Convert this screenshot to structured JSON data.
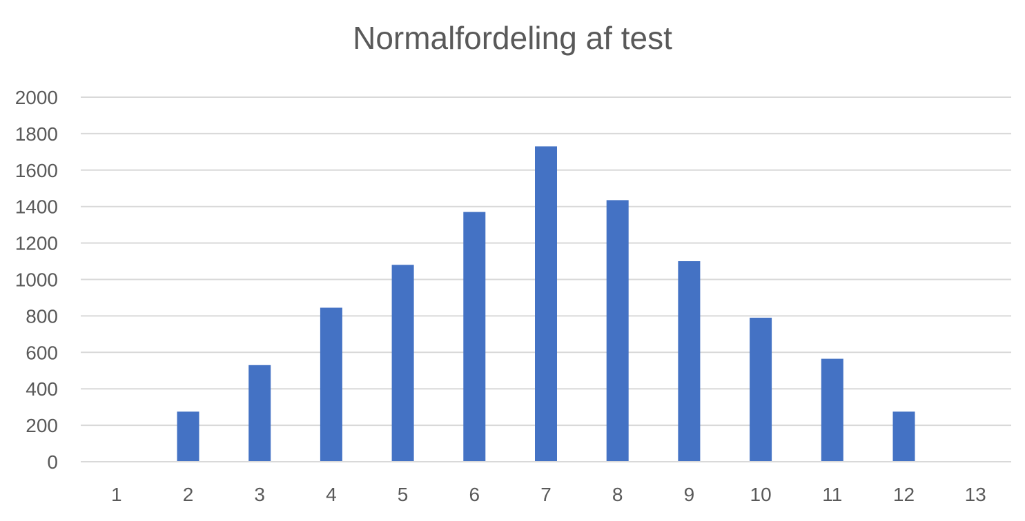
{
  "colors": {
    "bar": "#4472C4",
    "grid": "#D9D9D9",
    "axis": "#D9D9D9",
    "text": "#595959"
  },
  "chart_data": {
    "type": "bar",
    "title": "Normalfordeling af test",
    "xlabel": "",
    "ylabel": "",
    "categories": [
      "1",
      "2",
      "3",
      "4",
      "5",
      "6",
      "7",
      "8",
      "9",
      "10",
      "11",
      "12",
      "13"
    ],
    "values": [
      0,
      275,
      530,
      845,
      1080,
      1370,
      1730,
      1435,
      1100,
      790,
      565,
      275,
      0
    ],
    "ylim": [
      0,
      2000
    ],
    "yticks": [
      0,
      200,
      400,
      600,
      800,
      1000,
      1200,
      1400,
      1600,
      1800,
      2000
    ],
    "grid": true,
    "legend": "none"
  }
}
